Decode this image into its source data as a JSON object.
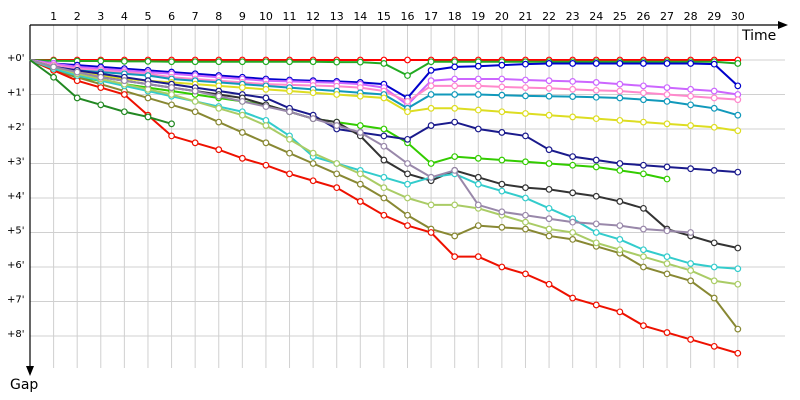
{
  "chart_data": {
    "type": "line",
    "x_label": "Time",
    "y_label": "Gap",
    "x": [
      0,
      1,
      2,
      3,
      4,
      5,
      6,
      7,
      8,
      9,
      10,
      11,
      12,
      13,
      14,
      15,
      16,
      17,
      18,
      19,
      20,
      21,
      22,
      23,
      24,
      25,
      26,
      27,
      28,
      29,
      30
    ],
    "xlim": [
      0,
      32
    ],
    "xticks": [
      1,
      2,
      3,
      4,
      5,
      6,
      7,
      8,
      9,
      10,
      11,
      12,
      13,
      14,
      15,
      16,
      17,
      18,
      19,
      20,
      21,
      22,
      23,
      24,
      25,
      26,
      27,
      28,
      29,
      30
    ],
    "ylim": [
      -1,
      9
    ],
    "yticks": [
      {
        "value": 0,
        "label": "+0'"
      },
      {
        "value": 1,
        "label": "+1'"
      },
      {
        "value": 2,
        "label": "+2'"
      },
      {
        "value": 3,
        "label": "+3'"
      },
      {
        "value": 4,
        "label": "+4'"
      },
      {
        "value": 5,
        "label": "+5'"
      },
      {
        "value": 6,
        "label": "+6'"
      },
      {
        "value": 7,
        "label": "+7'"
      },
      {
        "value": 8,
        "label": "+8'"
      }
    ],
    "grid": true,
    "series": [
      {
        "color": "#ff0000",
        "values": [
          0,
          0,
          0,
          0,
          0,
          0,
          0,
          0,
          0,
          0,
          0,
          0,
          0,
          0,
          0,
          0,
          0,
          0,
          0,
          0,
          0,
          0,
          0,
          0,
          0,
          0,
          0,
          0,
          0,
          0,
          0
        ]
      },
      {
        "color": "#22aa22",
        "values": [
          0,
          0.02,
          0.03,
          0.03,
          0.04,
          0.04,
          0.05,
          0.05,
          0.05,
          0.05,
          0.05,
          0.05,
          0.05,
          0.06,
          0.06,
          0.1,
          0.45,
          0.05,
          0.05,
          0.05,
          0.05,
          0.05,
          0.05,
          0.05,
          0.05,
          0.05,
          0.05,
          0.05,
          0.05,
          0.05,
          0.1
        ]
      },
      {
        "color": "#0000cc",
        "values": [
          0,
          0.1,
          0.15,
          0.2,
          0.25,
          0.3,
          0.35,
          0.4,
          0.45,
          0.5,
          0.55,
          0.58,
          0.6,
          0.62,
          0.65,
          0.7,
          1.1,
          0.3,
          0.2,
          0.18,
          0.15,
          0.12,
          0.1,
          0.1,
          0.1,
          0.1,
          0.1,
          0.1,
          0.1,
          0.12,
          0.75
        ]
      },
      {
        "color": "#cc66ff",
        "values": [
          0,
          0.1,
          0.2,
          0.25,
          0.3,
          0.35,
          0.4,
          0.45,
          0.5,
          0.55,
          0.6,
          0.62,
          0.64,
          0.66,
          0.7,
          0.8,
          1.3,
          0.6,
          0.55,
          0.55,
          0.55,
          0.58,
          0.6,
          0.62,
          0.65,
          0.7,
          0.75,
          0.8,
          0.85,
          0.9,
          1.0
        ]
      },
      {
        "color": "#ff88cc",
        "values": [
          0,
          0.15,
          0.25,
          0.3,
          0.35,
          0.4,
          0.5,
          0.55,
          0.6,
          0.65,
          0.7,
          0.72,
          0.74,
          0.76,
          0.8,
          0.9,
          1.2,
          0.75,
          0.75,
          0.75,
          0.78,
          0.8,
          0.82,
          0.85,
          0.88,
          0.9,
          0.95,
          1.0,
          1.05,
          1.1,
          1.15
        ]
      },
      {
        "color": "#1199bb",
        "values": [
          0,
          0.2,
          0.3,
          0.35,
          0.4,
          0.45,
          0.55,
          0.6,
          0.65,
          0.7,
          0.75,
          0.8,
          0.85,
          0.9,
          0.95,
          1.0,
          1.4,
          1.0,
          1.0,
          1.0,
          1.02,
          1.04,
          1.05,
          1.06,
          1.08,
          1.1,
          1.15,
          1.2,
          1.3,
          1.4,
          1.6
        ]
      },
      {
        "color": "#dddd22",
        "values": [
          0,
          0.2,
          0.35,
          0.45,
          0.55,
          0.6,
          0.65,
          0.7,
          0.75,
          0.8,
          0.85,
          0.9,
          0.95,
          1.0,
          1.05,
          1.1,
          1.5,
          1.4,
          1.4,
          1.45,
          1.5,
          1.55,
          1.6,
          1.65,
          1.7,
          1.75,
          1.8,
          1.85,
          1.9,
          1.95,
          2.05
        ]
      },
      {
        "color": "#33cc00",
        "values": [
          0,
          0.3,
          0.5,
          0.6,
          0.7,
          0.8,
          0.9,
          1.0,
          1.1,
          1.2,
          1.3,
          1.5,
          1.7,
          1.8,
          1.9,
          2.0,
          2.4,
          3.0,
          2.8,
          2.85,
          2.9,
          2.95,
          3.0,
          3.05,
          3.1,
          3.2,
          3.3,
          3.45,
          null,
          null,
          null
        ]
      },
      {
        "color": "#1a1a8c",
        "values": [
          0,
          0.2,
          0.3,
          0.4,
          0.5,
          0.6,
          0.7,
          0.8,
          0.9,
          1.0,
          1.1,
          1.4,
          1.6,
          2.0,
          2.1,
          2.2,
          2.3,
          1.9,
          1.8,
          2.0,
          2.1,
          2.2,
          2.6,
          2.8,
          2.9,
          3.0,
          3.05,
          3.1,
          3.15,
          3.2,
          3.25
        ]
      },
      {
        "color": "#333333",
        "values": [
          0,
          0.25,
          0.4,
          0.5,
          0.6,
          0.7,
          0.8,
          0.9,
          1.0,
          1.1,
          1.3,
          1.5,
          1.7,
          1.8,
          2.2,
          2.9,
          3.3,
          3.5,
          3.2,
          3.4,
          3.6,
          3.7,
          3.75,
          3.85,
          3.95,
          4.1,
          4.3,
          4.9,
          5.1,
          5.3,
          5.45
        ]
      },
      {
        "color": "#888833",
        "values": [
          0,
          0.3,
          0.5,
          0.7,
          0.9,
          1.1,
          1.3,
          1.5,
          1.8,
          2.1,
          2.4,
          2.7,
          3.0,
          3.3,
          3.6,
          4.0,
          4.5,
          4.9,
          5.1,
          4.8,
          4.85,
          4.9,
          5.1,
          5.2,
          5.4,
          5.6,
          6.0,
          6.2,
          6.4,
          6.9,
          7.8
        ]
      },
      {
        "color": "#ee1100",
        "values": [
          0,
          0.3,
          0.6,
          0.8,
          1.0,
          1.6,
          2.2,
          2.4,
          2.6,
          2.85,
          3.05,
          3.3,
          3.5,
          3.7,
          4.1,
          4.5,
          4.8,
          5.0,
          5.7,
          5.7,
          6.0,
          6.2,
          6.5,
          6.9,
          7.1,
          7.3,
          7.7,
          7.9,
          8.1,
          8.3,
          8.5
        ]
      },
      {
        "color": "#33cccc",
        "values": [
          0,
          0.25,
          0.45,
          0.6,
          0.75,
          0.9,
          1.05,
          1.2,
          1.35,
          1.5,
          1.75,
          2.2,
          2.8,
          3.0,
          3.2,
          3.4,
          3.6,
          3.4,
          3.3,
          3.6,
          3.8,
          4.0,
          4.3,
          4.6,
          5.0,
          5.2,
          5.5,
          5.7,
          5.9,
          6.0,
          6.05
        ]
      },
      {
        "color": "#aacc66",
        "values": [
          0,
          0.2,
          0.4,
          0.55,
          0.7,
          0.85,
          1.0,
          1.2,
          1.4,
          1.6,
          1.9,
          2.3,
          2.7,
          3.0,
          3.3,
          3.7,
          4.0,
          4.2,
          4.2,
          4.3,
          4.5,
          4.7,
          4.9,
          5.0,
          5.3,
          5.5,
          5.7,
          5.9,
          6.1,
          6.4,
          6.5
        ]
      },
      {
        "color": "#9988aa",
        "values": [
          0,
          0.2,
          0.35,
          0.5,
          0.6,
          0.7,
          0.8,
          0.9,
          1.05,
          1.2,
          1.35,
          1.5,
          1.7,
          1.9,
          2.1,
          2.5,
          3.0,
          3.4,
          3.2,
          4.2,
          4.4,
          4.5,
          4.6,
          4.7,
          4.75,
          4.8,
          4.9,
          4.95,
          5.0,
          null,
          null
        ]
      },
      {
        "color": "#228822",
        "values": [
          0,
          0.5,
          1.1,
          1.3,
          1.5,
          1.65,
          1.85,
          null,
          null,
          null,
          null,
          null,
          null,
          null,
          null,
          null,
          null,
          null,
          null,
          null,
          null,
          null,
          null,
          null,
          null,
          null,
          null,
          null,
          null,
          null,
          null
        ]
      }
    ]
  }
}
